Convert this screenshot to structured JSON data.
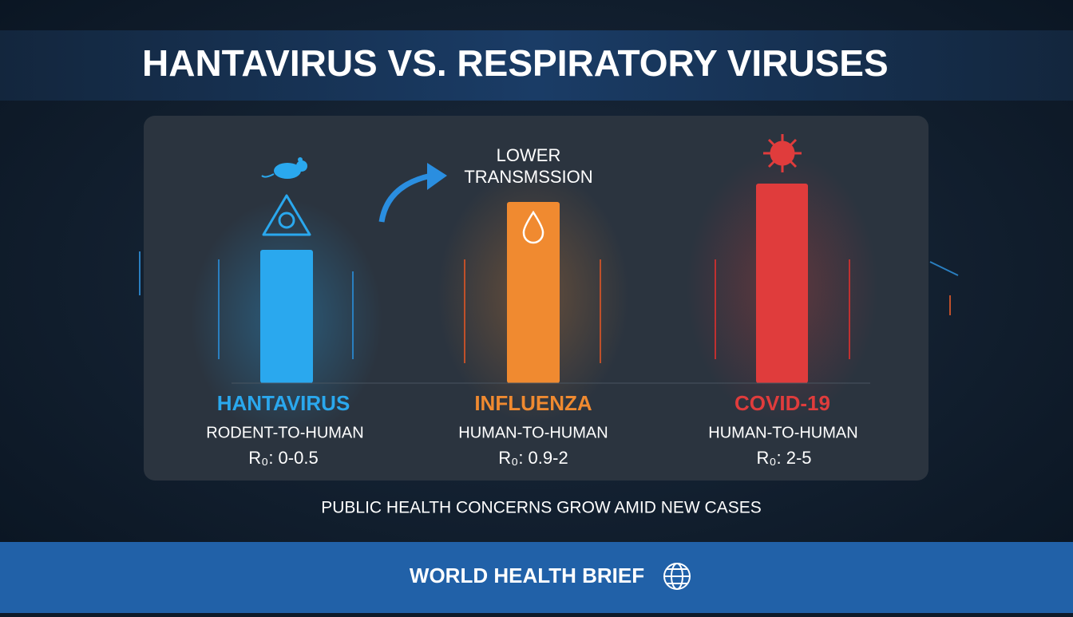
{
  "header": {
    "title": "HANTAVIRUS VS. RESPIRATORY VIRUSES"
  },
  "annotation": {
    "lines": [
      "LOWER",
      "TRANSMSSION"
    ]
  },
  "viruses": [
    {
      "name": "HANTAVIRUS",
      "transmission": "RODENT-TO-HUMAN",
      "r0": "R₀: 0-0.5"
    },
    {
      "name": "INFLUENZA",
      "transmission": "HUMAN-TO-HUMAN",
      "r0": "R₀: 0.9-2"
    },
    {
      "name": "COVID-19",
      "transmission": "HUMAN-TO-HUMAN",
      "r0": "R₀: 2-5"
    }
  ],
  "subtitle": "PUBLIC HEALTH CONCERNS GROW AMID NEW CASES",
  "footer": {
    "brand": "WORLD HEALTH BRIEF"
  }
}
